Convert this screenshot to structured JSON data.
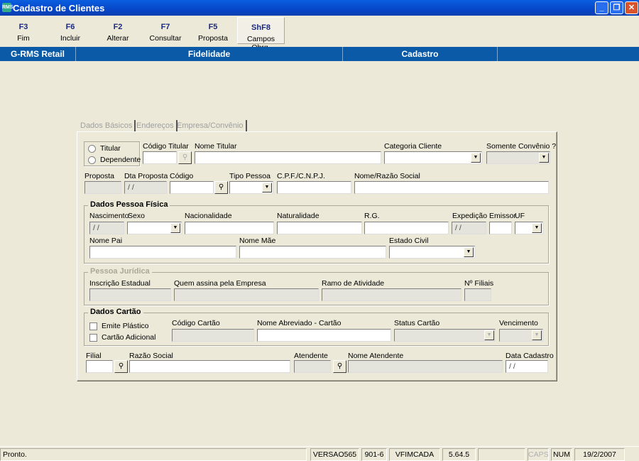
{
  "window": {
    "title": "Cadastro de Clientes",
    "logo": "RMS",
    "min": "_",
    "max": "❐",
    "close": "✕"
  },
  "toolbar": [
    {
      "key": "F3",
      "label": "Fim"
    },
    {
      "key": "F6",
      "label": "Incluir"
    },
    {
      "key": "F2",
      "label": "Alterar"
    },
    {
      "key": "F7",
      "label": "Consultar"
    },
    {
      "key": "F5",
      "label": "Proposta"
    },
    {
      "key": "ShF8",
      "label": "Campos Obrg."
    }
  ],
  "header": {
    "app": "G-RMS Retail",
    "module": "Fidelidade",
    "screen": "Cadastro"
  },
  "tabs": [
    {
      "label": "Dados Básicos"
    },
    {
      "label": "Endereços"
    },
    {
      "label": "Empresa/Convênio"
    }
  ],
  "form": {
    "radio": {
      "titular": "Titular",
      "dependente": "Dependente"
    },
    "codigo_titular": "Código Titular",
    "nome_titular": "Nome Titular",
    "categoria_cliente": "Categoria Cliente",
    "somente_convenio": "Somente Convênio ?",
    "proposta": "Proposta",
    "dta_proposta": "Dta Proposta",
    "dta_proposta_value": " / /",
    "codigo": "Código",
    "tipo_pessoa": "Tipo Pessoa",
    "cpf_cnpj": "C.P.F./C.N.P.J.",
    "nome_razao": "Nome/Razão Social",
    "pf": {
      "title": "Dados Pessoa Física",
      "nascimento": "Nascimento",
      "nascimento_value": " / /",
      "sexo": "Sexo",
      "nacionalidade": "Nacionalidade",
      "naturalidade": "Naturalidade",
      "rg": "R.G.",
      "expedicao": "Expedição",
      "expedicao_value": " / /",
      "emissor": "Emissor",
      "uf": "UF",
      "nome_pai": "Nome Pai",
      "nome_mae": "Nome Mãe",
      "estado_civil": "Estado Civil"
    },
    "pj": {
      "title": "Pessoa Jurídica",
      "inscricao": "Inscrição Estadual",
      "quem_assina": "Quem assina pela Empresa",
      "ramo": "Ramo de Atividade",
      "filiais": "Nº Filiais"
    },
    "cartao": {
      "title": "Dados Cartão",
      "emite_plastico": "Emite Plástico",
      "cartao_adicional": "Cartão Adicional",
      "codigo_cartao": "Código Cartão",
      "nome_abreviado": "Nome Abreviado - Cartão",
      "status_cartao": "Status Cartão",
      "vencimento": "Vencimento"
    },
    "filial": "Filial",
    "razao_social": "Razão Social",
    "atendente": "Atendente",
    "nome_atendente": "Nome Atendente",
    "data_cadastro": "Data Cadastro",
    "data_cadastro_value": " / /"
  },
  "status": {
    "message": "Pronto.",
    "version": "VERSAO565",
    "code": "901-6",
    "program": "VFIMCADA",
    "build": "5.64.5",
    "extra": "",
    "caps": "CAPS",
    "num": "NUM",
    "date": "19/2/2007"
  }
}
